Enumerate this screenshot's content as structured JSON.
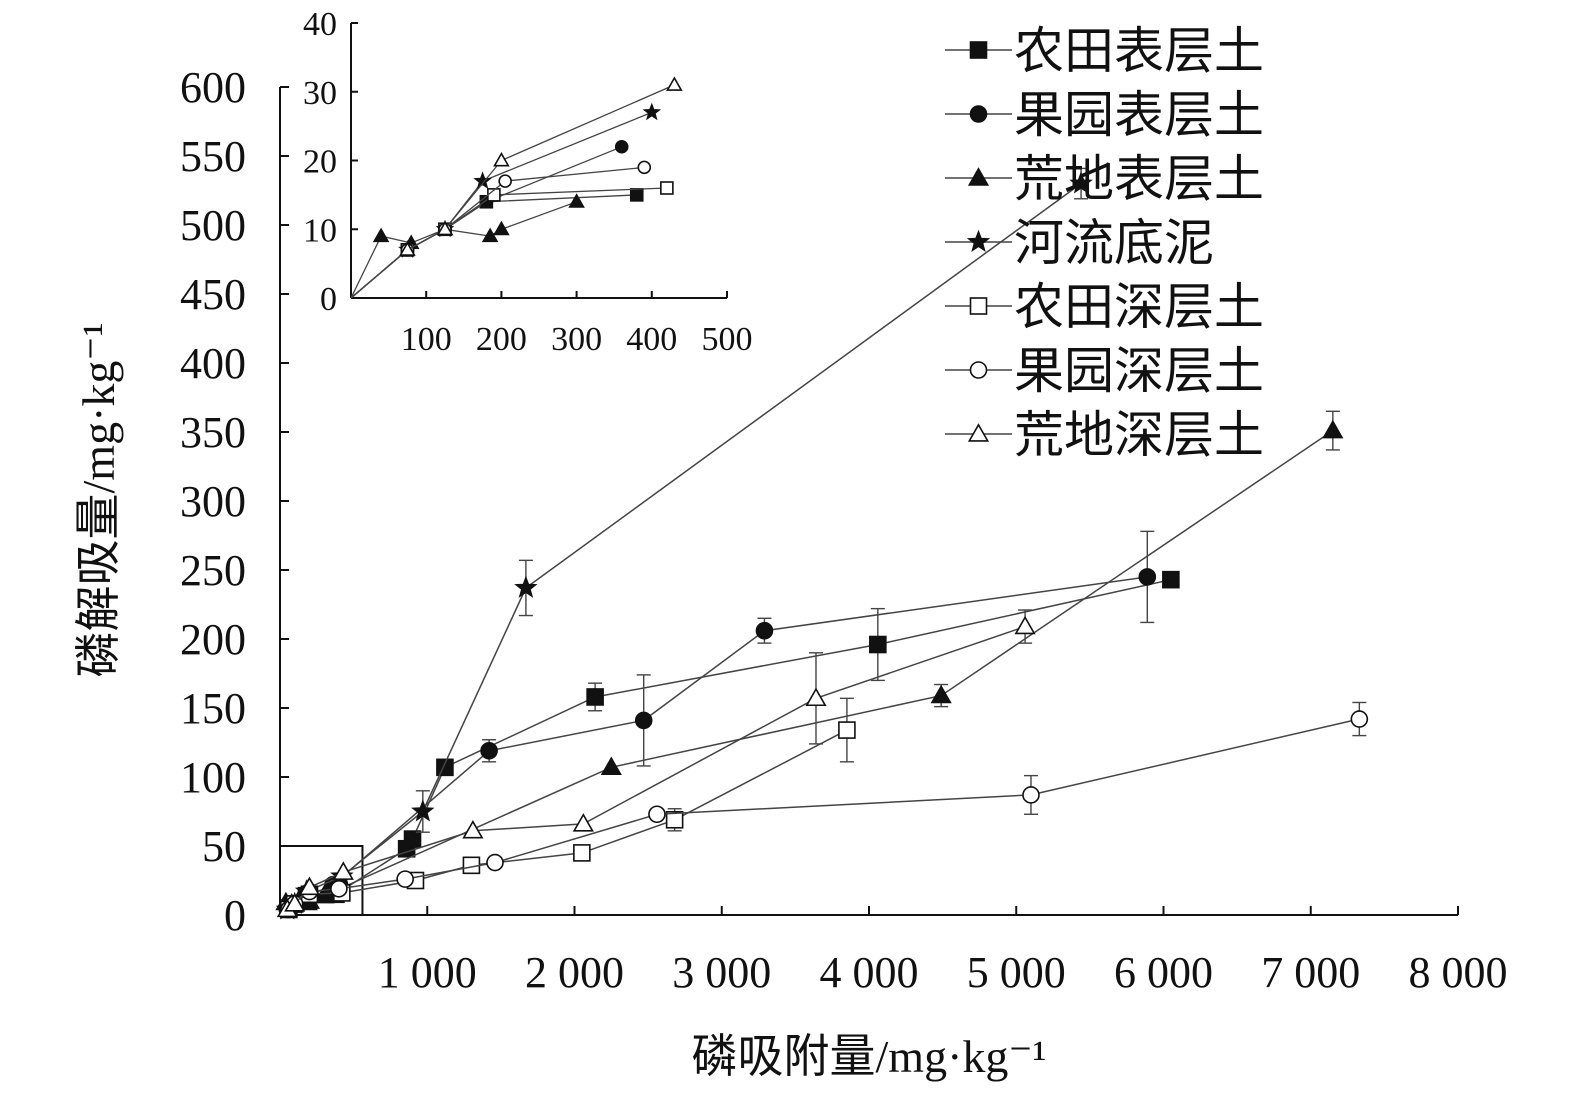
{
  "chart_data": [
    {
      "type": "line",
      "xlabel": "磷吸附量/mg·kg⁻¹",
      "ylabel": "磷解吸量/mg·kg⁻¹",
      "xlim": [
        0,
        8000
      ],
      "ylim": [
        0,
        600
      ],
      "x_ticks": [
        1000,
        2000,
        3000,
        4000,
        5000,
        6000,
        7000,
        8000
      ],
      "x_tick_labels": [
        "1 000",
        "2 000",
        "3 000",
        "4 000",
        "5 000",
        "6 000",
        "7 000",
        "8 000"
      ],
      "y_ticks": [
        0,
        50,
        100,
        150,
        200,
        250,
        300,
        350,
        400,
        450,
        500,
        550,
        600
      ],
      "y_tick_labels": [
        "0",
        "50",
        "100",
        "150",
        "200",
        "250",
        "300",
        "350",
        "400",
        "450",
        "500",
        "550",
        "600"
      ],
      "grid": false,
      "legend_position": "top-right",
      "series": [
        {
          "name": "农田表层土",
          "marker": "square-filled",
          "color": "#111111",
          "points": [
            [
              55,
              5
            ],
            [
              90,
              8
            ],
            [
              180,
              14
            ],
            [
              380,
              15
            ],
            [
              860,
              48
            ],
            [
              900,
              55
            ],
            [
              1120,
              107
            ],
            [
              2140,
              158
            ],
            [
              4060,
              196
            ],
            [
              6050,
              243
            ]
          ],
          "errors": [
            0,
            0,
            0,
            0,
            0,
            0,
            0,
            10,
            26,
            0
          ]
        },
        {
          "name": "果园表层土",
          "marker": "circle-filled",
          "color": "#111111",
          "points": [
            [
              50,
              4
            ],
            [
              100,
              8
            ],
            [
              200,
              14
            ],
            [
              360,
              22
            ],
            [
              1420,
              119
            ],
            [
              2470,
              141
            ],
            [
              3290,
              206
            ],
            [
              5890,
              245
            ]
          ],
          "errors": [
            0,
            0,
            0,
            0,
            8,
            33,
            9,
            33
          ]
        },
        {
          "name": "荒地表层土",
          "marker": "triangle-filled",
          "color": "#111111",
          "points": [
            [
              40,
              9
            ],
            [
              80,
              8
            ],
            [
              125,
              10
            ],
            [
              185,
              9
            ],
            [
              200,
              10
            ],
            [
              300,
              14
            ],
            [
              2250,
              107
            ],
            [
              4490,
              159
            ],
            [
              7150,
              351
            ]
          ],
          "errors": [
            0,
            0,
            0,
            0,
            0,
            0,
            0,
            8,
            14
          ]
        },
        {
          "name": "河流底泥",
          "marker": "star-filled",
          "color": "#111111",
          "points": [
            [
              50,
              4
            ],
            [
              100,
              8
            ],
            [
              180,
              17
            ],
            [
              420,
              28
            ],
            [
              970,
              75
            ],
            [
              1670,
              237
            ],
            [
              5440,
              530
            ]
          ],
          "errors": [
            0,
            0,
            0,
            0,
            15,
            20,
            11
          ]
        },
        {
          "name": "农田深层土",
          "marker": "square-open",
          "color": "#111111",
          "points": [
            [
              60,
              4
            ],
            [
              100,
              8
            ],
            [
              200,
              15
            ],
            [
              420,
              16
            ],
            [
              920,
              25
            ],
            [
              1300,
              36
            ],
            [
              2050,
              45
            ],
            [
              2680,
              69
            ],
            [
              3850,
              134
            ]
          ],
          "errors": [
            0,
            0,
            0,
            0,
            0,
            0,
            0,
            8,
            23
          ]
        },
        {
          "name": "果园深层土",
          "marker": "circle-open",
          "color": "#111111",
          "points": [
            [
              60,
              4
            ],
            [
              100,
              8
            ],
            [
              200,
              17
            ],
            [
              400,
              19
            ],
            [
              850,
              26
            ],
            [
              1460,
              38
            ],
            [
              2560,
              73
            ],
            [
              5100,
              87
            ],
            [
              7330,
              142
            ]
          ],
          "errors": [
            0,
            0,
            0,
            0,
            0,
            0,
            0,
            14,
            12
          ]
        },
        {
          "name": "荒地深层土",
          "marker": "triangle-open",
          "color": "#111111",
          "points": [
            [
              50,
              4
            ],
            [
              100,
              8
            ],
            [
              200,
              20
            ],
            [
              430,
              31
            ],
            [
              1310,
              61
            ],
            [
              2060,
              66
            ],
            [
              3640,
              157
            ],
            [
              5060,
              209
            ]
          ],
          "errors": [
            0,
            0,
            0,
            0,
            0,
            0,
            33,
            12
          ]
        }
      ]
    },
    {
      "type": "line",
      "inset": true,
      "xlim": [
        0,
        500
      ],
      "ylim": [
        0,
        40
      ],
      "x_ticks": [
        100,
        200,
        300,
        400,
        500
      ],
      "x_tick_labels": [
        "100",
        "200",
        "300",
        "400",
        "500"
      ],
      "y_ticks": [
        0,
        10,
        20,
        30,
        40
      ],
      "y_tick_labels": [
        "0",
        "10",
        "20",
        "30",
        "40"
      ],
      "grid": false,
      "series": [
        {
          "name": "农田表层土",
          "marker": "square-filled",
          "points": [
            [
              0,
              0
            ],
            [
              75,
              7
            ],
            [
              125,
              10
            ],
            [
              180,
              14
            ],
            [
              380,
              15
            ]
          ]
        },
        {
          "name": "果园表层土",
          "marker": "circle-filled",
          "points": [
            [
              0,
              0
            ],
            [
              75,
              7
            ],
            [
              125,
              10
            ],
            [
              180,
              14
            ],
            [
              360,
              22
            ]
          ]
        },
        {
          "name": "荒地表层土",
          "marker": "triangle-filled",
          "points": [
            [
              0,
              0
            ],
            [
              40,
              9
            ],
            [
              80,
              8
            ],
            [
              125,
              10
            ],
            [
              185,
              9
            ],
            [
              200,
              10
            ],
            [
              300,
              14
            ]
          ]
        },
        {
          "name": "河流底泥",
          "marker": "star-filled",
          "points": [
            [
              0,
              0
            ],
            [
              75,
              7
            ],
            [
              125,
              10
            ],
            [
              175,
              17
            ],
            [
              400,
              27
            ]
          ]
        },
        {
          "name": "农田深层土",
          "marker": "square-open",
          "points": [
            [
              0,
              0
            ],
            [
              75,
              7
            ],
            [
              125,
              10
            ],
            [
              190,
              15
            ],
            [
              420,
              16
            ]
          ]
        },
        {
          "name": "果园深层土",
          "marker": "circle-open",
          "points": [
            [
              0,
              0
            ],
            [
              75,
              7
            ],
            [
              125,
              10
            ],
            [
              205,
              17
            ],
            [
              390,
              19
            ]
          ]
        },
        {
          "name": "荒地深层土",
          "marker": "triangle-open",
          "points": [
            [
              0,
              0
            ],
            [
              75,
              7
            ],
            [
              125,
              10
            ],
            [
              200,
              20
            ],
            [
              430,
              31
            ]
          ]
        }
      ]
    }
  ]
}
